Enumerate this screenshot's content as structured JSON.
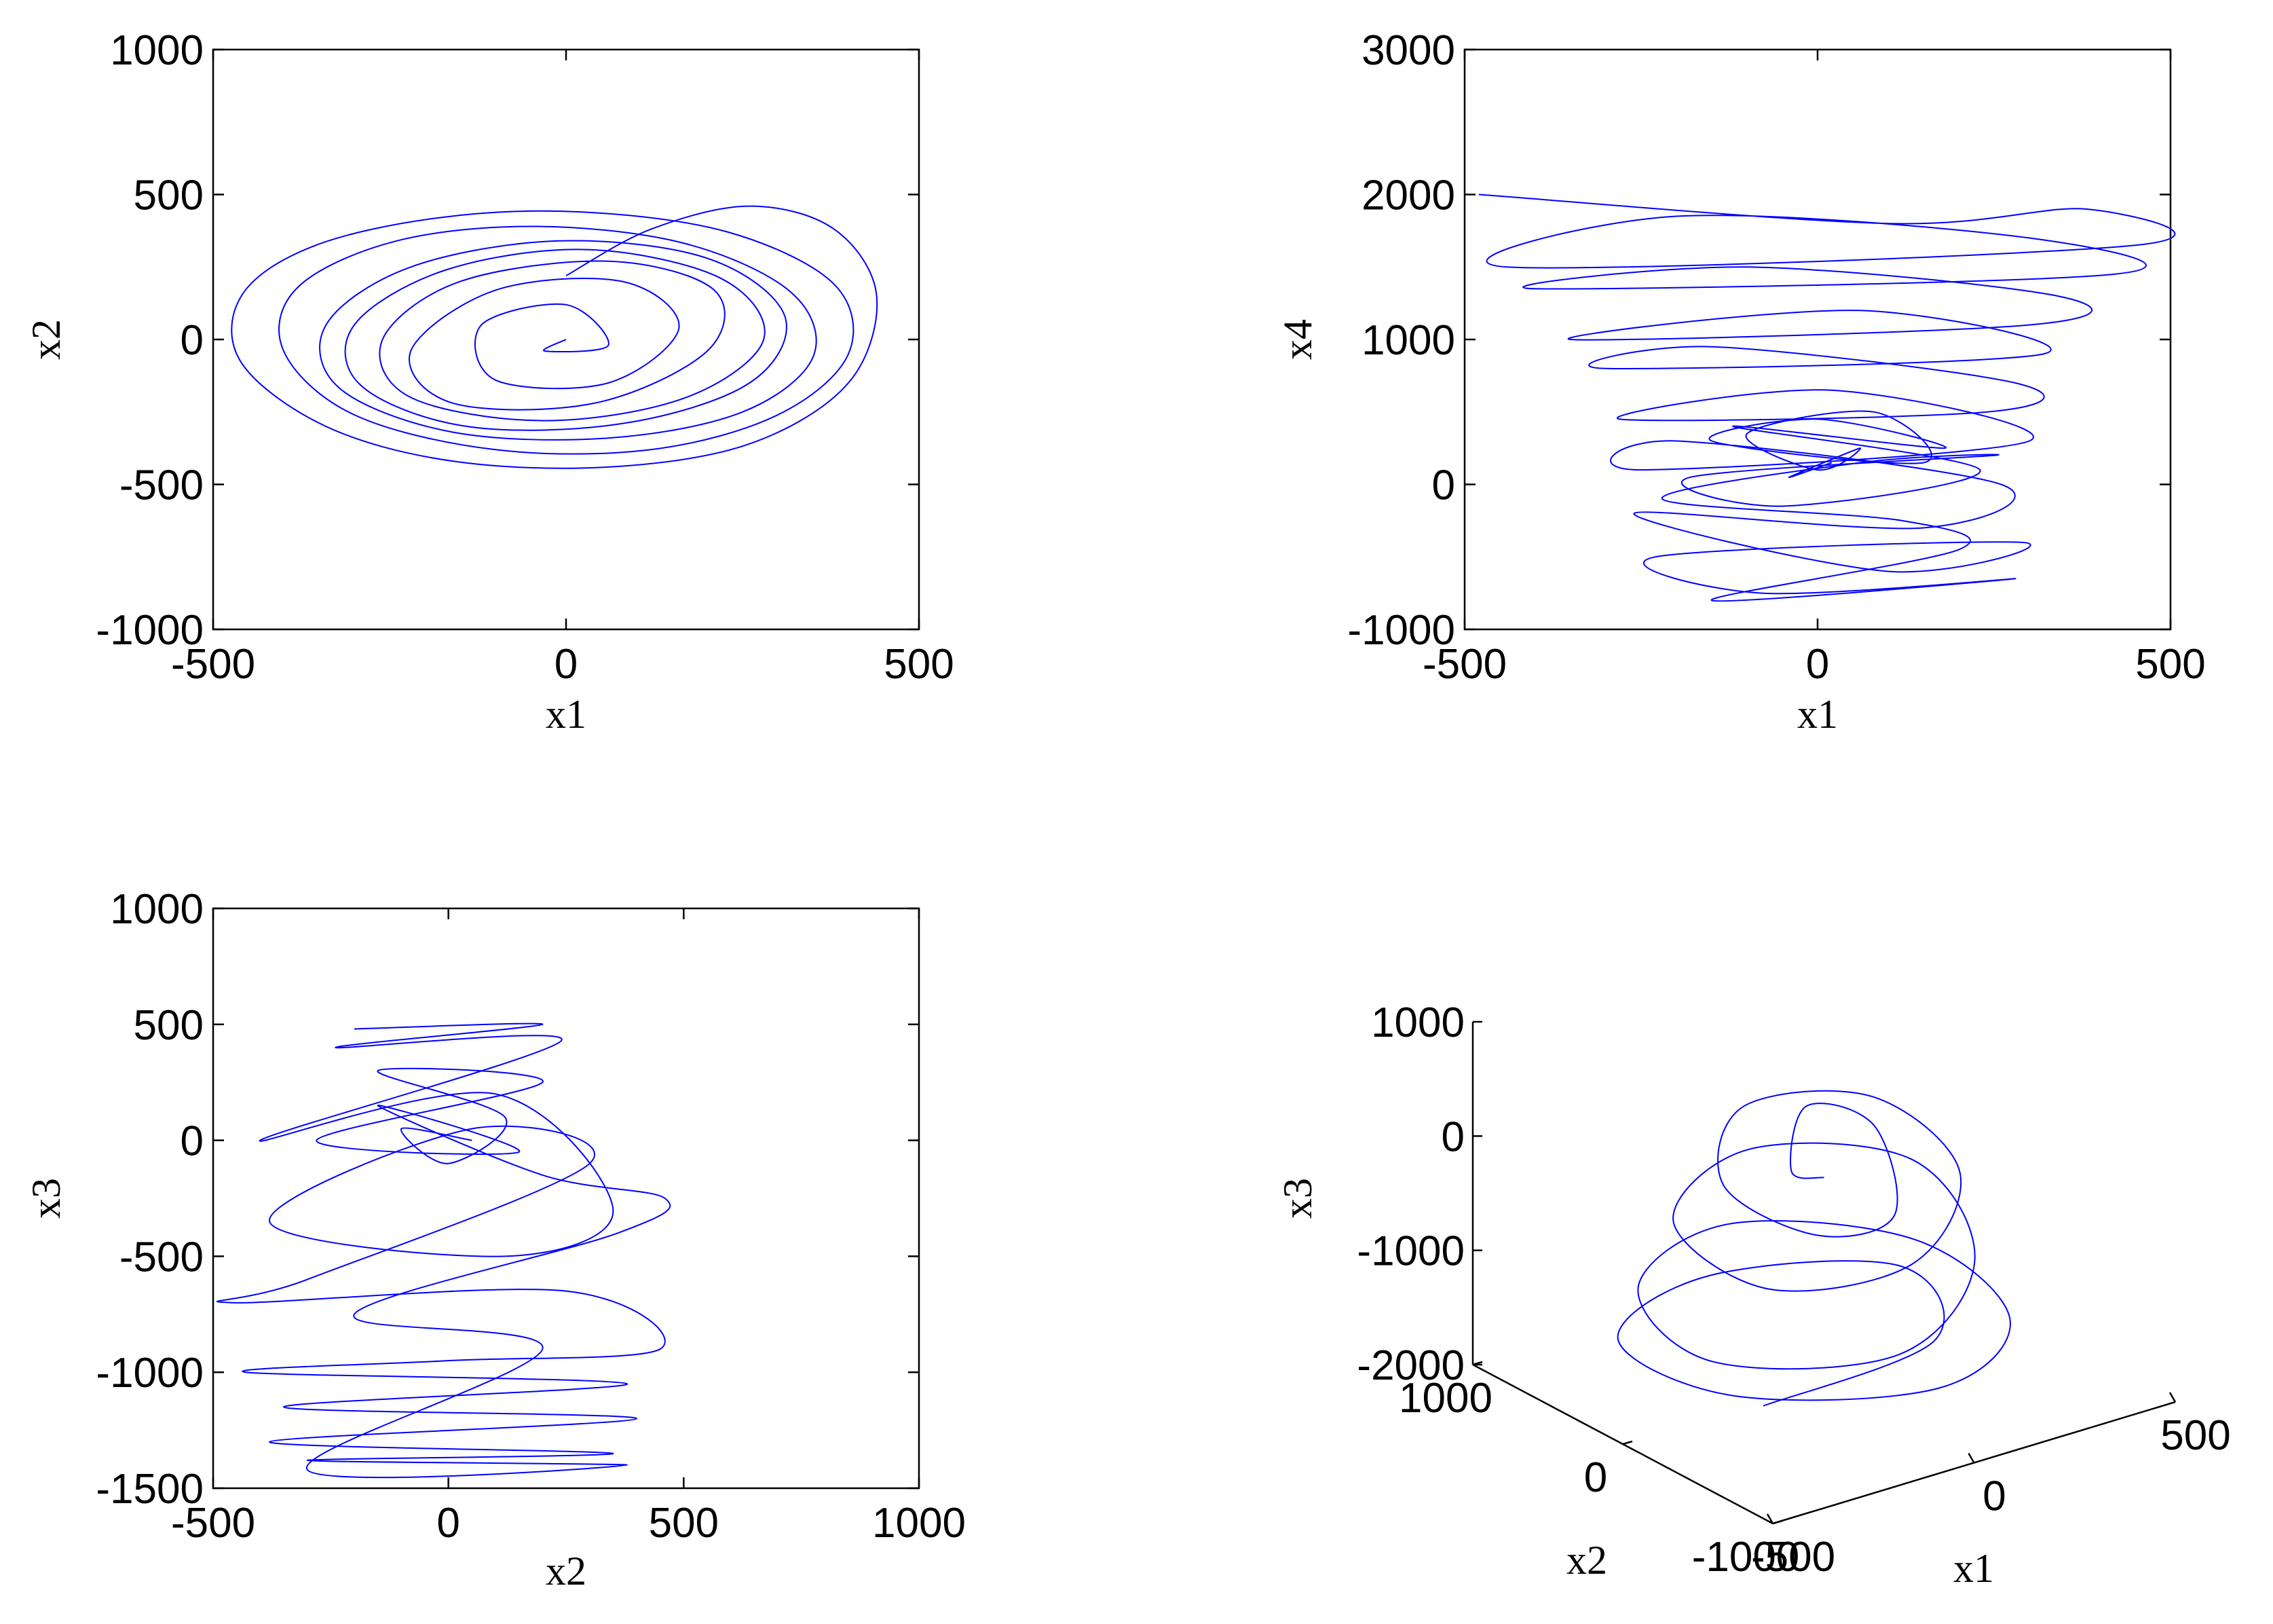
{
  "colors": {
    "trajectory": "#0000ff",
    "axes": "#000000",
    "background": "#ffffff"
  },
  "chart_data": [
    {
      "id": "x1-x2",
      "type": "line",
      "plot": "phase-portrait",
      "xlabel": "x1",
      "ylabel": "x2",
      "xlim": [
        -500,
        500
      ],
      "ylim": [
        -1000,
        1000
      ],
      "xticks": [
        "-500",
        "0",
        "500"
      ],
      "yticks": [
        "-1000",
        "-500",
        "0",
        "500",
        "1000"
      ],
      "grid": false,
      "series": [
        {
          "x": [
            0,
            120,
            260,
            380,
            440,
            400,
            260,
            60,
            -160,
            -340,
            -460,
            -460,
            -360,
            -180,
            20,
            230,
            380,
            400,
            300,
            120,
            -100,
            -300,
            -400,
            -380,
            -240,
            -40,
            170,
            320,
            350,
            250,
            60,
            -160,
            -320,
            -340,
            -220,
            -10,
            200,
            310,
            260,
            80,
            -140,
            -290,
            -300,
            -170,
            30,
            220,
            280,
            170,
            -30,
            -220,
            -260,
            -150,
            60,
            210,
            200,
            40,
            -160,
            -220,
            -100,
            80,
            160,
            60,
            -100,
            -120,
            0,
            60,
            -30,
            0
          ],
          "y": [
            220,
            380,
            460,
            380,
            150,
            -150,
            -360,
            -440,
            -420,
            -300,
            -80,
            150,
            320,
            420,
            440,
            370,
            190,
            -50,
            -260,
            -380,
            -380,
            -260,
            -40,
            180,
            340,
            390,
            330,
            160,
            -60,
            -250,
            -340,
            -320,
            -170,
            50,
            250,
            340,
            280,
            80,
            -150,
            -290,
            -300,
            -160,
            50,
            240,
            310,
            210,
            0,
            -200,
            -280,
            -200,
            0,
            200,
            270,
            170,
            -40,
            -220,
            -220,
            -40,
            170,
            200,
            40,
            -150,
            -140,
            50,
            120,
            -20,
            -40,
            0
          ]
        }
      ]
    },
    {
      "id": "x1-x4",
      "type": "line",
      "plot": "phase-portrait",
      "xlabel": "x1",
      "ylabel": "x4",
      "xlim": [
        -500,
        500
      ],
      "ylim": [
        -1000,
        3000
      ],
      "xticks": [
        "-500",
        "0",
        "500"
      ],
      "yticks": [
        "-1000",
        "0",
        "1000",
        "2000",
        "3000"
      ],
      "grid": false,
      "series": [
        {
          "x": [
            -480,
            100,
            380,
            450,
            -440,
            -200,
            300,
            420,
            -400,
            -100,
            340,
            300,
            -350,
            60,
            320,
            -300,
            -150,
            280,
            240,
            -280,
            20,
            300,
            -250,
            -200,
            260,
            150,
            -260,
            100,
            290,
            -230,
            -80,
            280,
            -150,
            200,
            120,
            -220,
            60,
            250,
            -180,
            -50,
            230,
            -120,
            180,
            0,
            -150,
            150,
            80,
            -100,
            0,
            60,
            -40,
            20
          ],
          "y": [
            2000,
            1800,
            1900,
            1650,
            1500,
            1850,
            1700,
            1450,
            1350,
            1500,
            1300,
            1100,
            1000,
            1200,
            900,
            800,
            950,
            700,
            500,
            450,
            650,
            300,
            100,
            300,
            0,
            -300,
            -200,
            -600,
            -400,
            -500,
            -750,
            -650,
            -800,
            -450,
            -250,
            -100,
            150,
            200,
            50,
            -150,
            100,
            400,
            250,
            450,
            300,
            150,
            500,
            350,
            100,
            250,
            50,
            150
          ]
        }
      ]
    },
    {
      "id": "x2-x3",
      "type": "line",
      "plot": "phase-portrait",
      "xlabel": "x2",
      "ylabel": "x3",
      "xlim": [
        -500,
        1000
      ],
      "ylim": [
        -1500,
        1000
      ],
      "xticks": [
        "-500",
        "0",
        "500",
        "1000"
      ],
      "yticks": [
        "-1500",
        "-1000",
        "-500",
        "0",
        "500",
        "1000"
      ],
      "grid": false,
      "series": [
        {
          "x": [
            -200,
            200,
            -240,
            240,
            -400,
            100,
            350,
            120,
            -380,
            50,
            300,
            -300,
            -460,
            250,
            450,
            0,
            -430,
            380,
            -350,
            400,
            -380,
            350,
            -300,
            380,
            -300,
            200,
            -200,
            360,
            460,
            200,
            -150,
            150,
            -280,
            200,
            -150,
            120,
            0,
            -100,
            50
          ],
          "y": [
            480,
            500,
            400,
            430,
            0,
            200,
            -300,
            -500,
            -350,
            50,
            -100,
            -600,
            -700,
            -650,
            -900,
            -950,
            -1000,
            -1050,
            -1150,
            -1200,
            -1300,
            -1350,
            -1380,
            -1400,
            -1420,
            -900,
            -750,
            -400,
            -250,
            -150,
            150,
            -50,
            0,
            250,
            300,
            100,
            -100,
            50,
            0
          ]
        }
      ]
    },
    {
      "id": "x1-x2-x3",
      "type": "line",
      "plot": "phase-portrait-3d",
      "xlabel": "x1",
      "ylabel": "x2",
      "zlabel": "x3",
      "xlim": [
        -500,
        500
      ],
      "ylim": [
        -1000,
        1000
      ],
      "zlim": [
        -2000,
        1000
      ],
      "xticks": [
        "-500",
        "0",
        "500"
      ],
      "yticks": [
        "-1000",
        "0",
        "1000"
      ],
      "zticks": [
        "-2000",
        "-1000",
        "0",
        "1000"
      ],
      "grid": false,
      "series": [
        {
          "x": [
            -300,
            200,
            300,
            -100,
            -400,
            -300,
            100,
            350,
            300,
            -50,
            -350,
            -350,
            0,
            300,
            330,
            0,
            -300,
            -250,
            50,
            300,
            250,
            -50,
            -250,
            -150,
            100,
            200,
            50,
            -100,
            0
          ],
          "y": [
            -400,
            -200,
            300,
            500,
            300,
            -200,
            -500,
            -300,
            200,
            500,
            300,
            -200,
            -500,
            -200,
            300,
            500,
            200,
            -300,
            -450,
            -100,
            350,
            400,
            0,
            -350,
            -200,
            200,
            250,
            -50,
            0
          ],
          "z": [
            -1600,
            -1700,
            -1500,
            -1300,
            -1400,
            -1650,
            -1800,
            -1600,
            -1200,
            -900,
            -1000,
            -1300,
            -1400,
            -1100,
            -600,
            -300,
            -400,
            -700,
            -700,
            -400,
            0,
            200,
            0,
            -300,
            -500,
            -100,
            200,
            0,
            -200
          ]
        }
      ]
    }
  ]
}
